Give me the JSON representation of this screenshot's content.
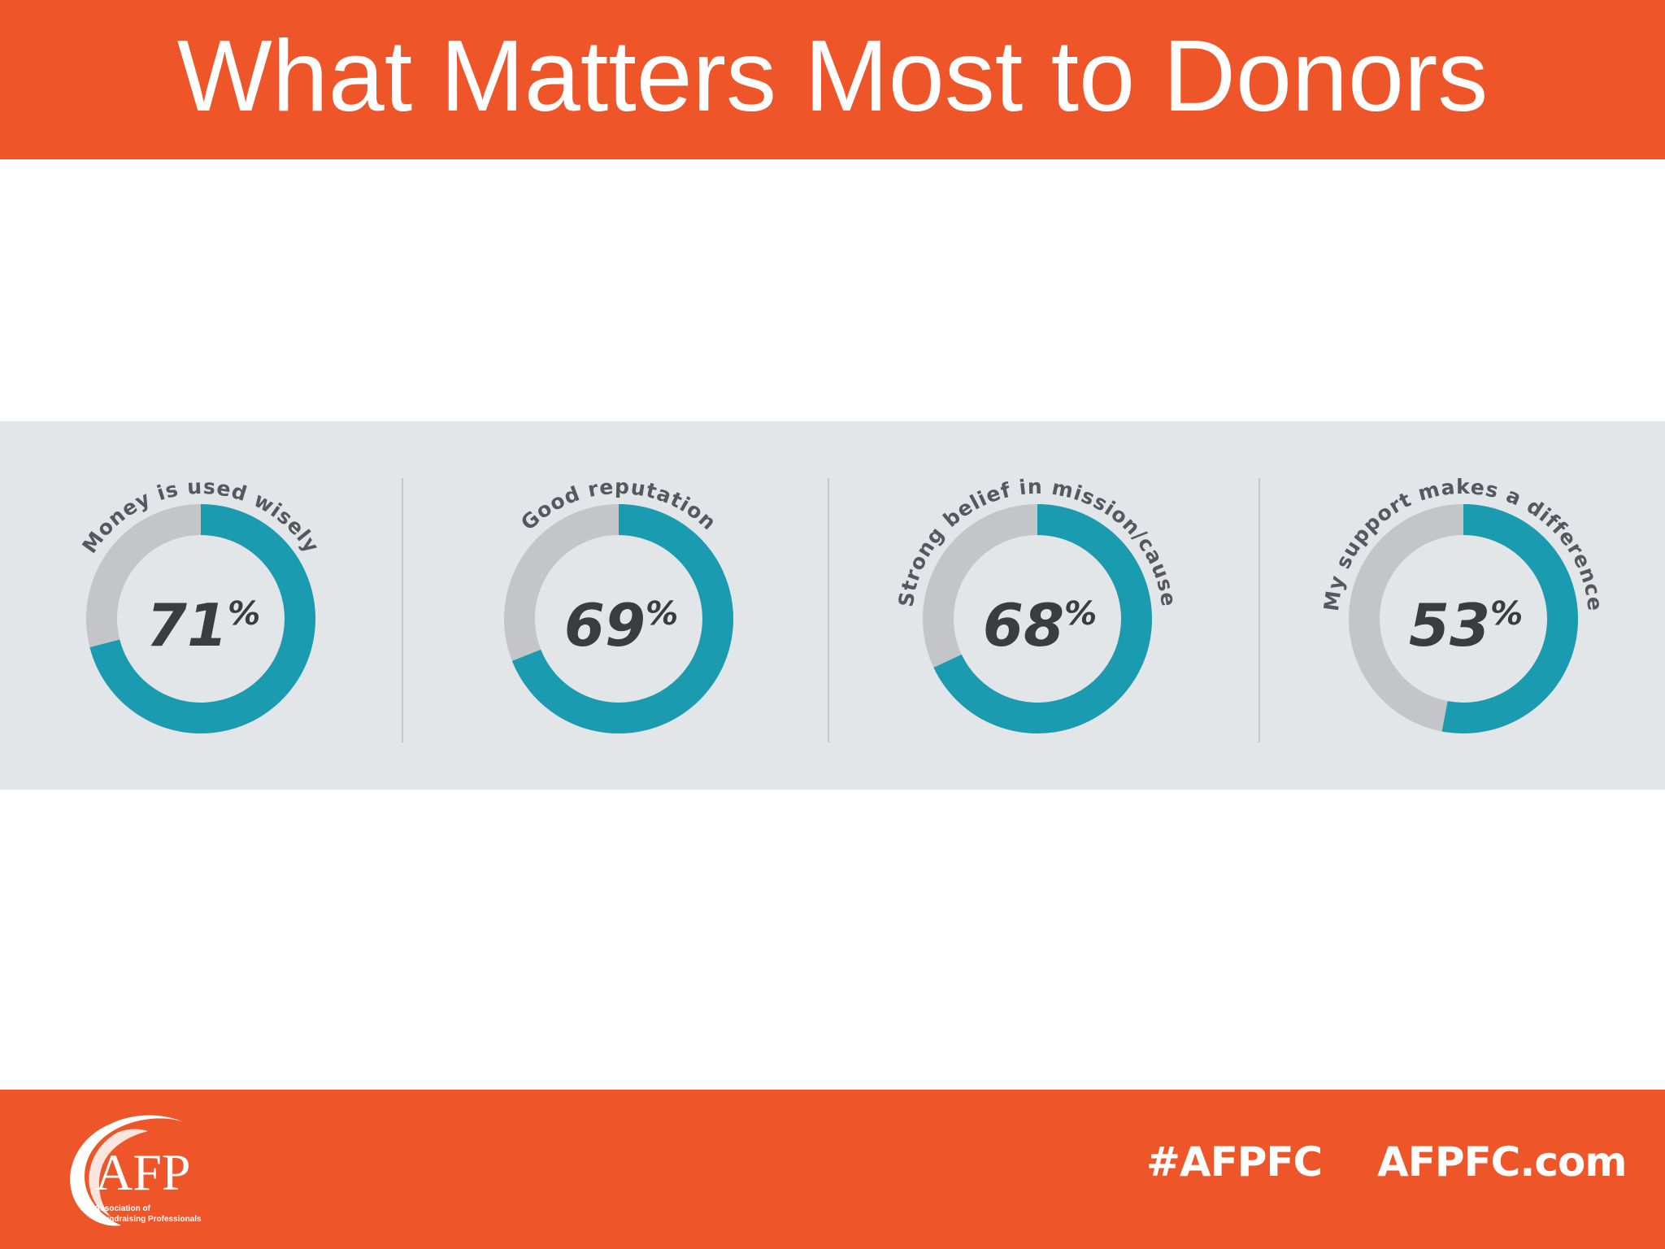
{
  "header": {
    "title": "What Matters Most to Donors"
  },
  "chart_data": {
    "type": "donut",
    "title": "",
    "percent_symbol": "%",
    "items": [
      {
        "label": "Money is used wisely",
        "value": 71
      },
      {
        "label": "Good reputation",
        "value": 69
      },
      {
        "label": "Strong belief in mission/cause",
        "value": 68
      },
      {
        "label": "My support makes a difference",
        "value": 53
      }
    ],
    "colors": {
      "filled": "#1b9bb0",
      "remaining": "#c4c5c8",
      "value_text": "#3a3c40",
      "label_text": "#55585c"
    }
  },
  "footer": {
    "logo_text": "AFP",
    "logo_tagline_line1": "Association of",
    "logo_tagline_line2": "Fundraising Professionals",
    "hashtag": "#AFPFC",
    "website": "AFPFC.com"
  },
  "colors": {
    "brand_orange": "#ee5528",
    "band_gray": "#e3e6e9"
  }
}
